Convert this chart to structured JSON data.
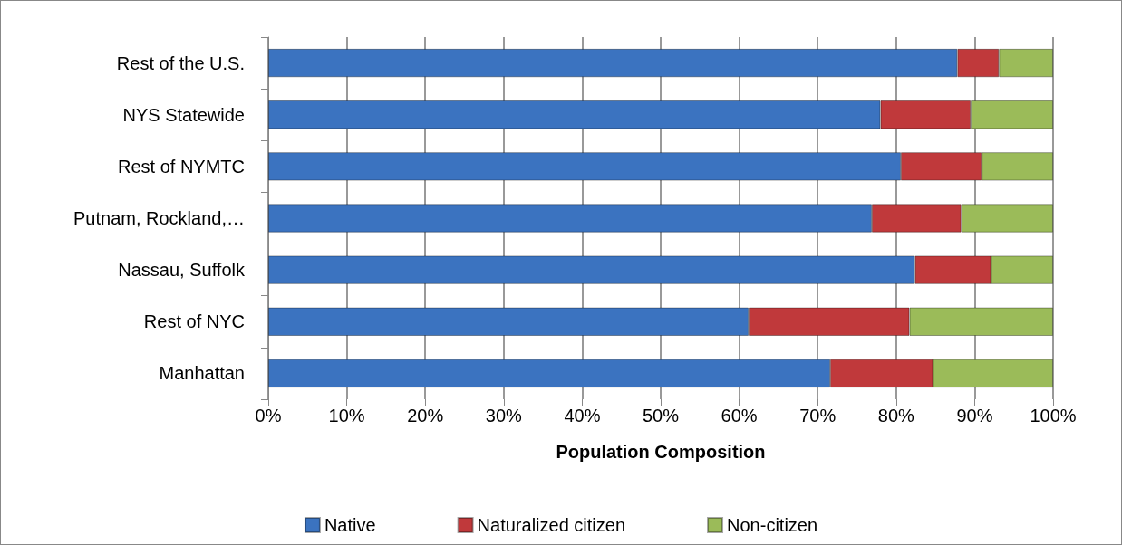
{
  "chart_data": {
    "type": "bar",
    "orientation": "horizontal",
    "stacked": true,
    "xlabel": "Population Composition",
    "categories": [
      "Rest of the U.S.",
      "NYS Statewide",
      "Rest of NYMTC",
      "Putnam, Rockland,…",
      "Nassau, Suffolk",
      "Rest of NYC",
      "Manhattan"
    ],
    "series": [
      {
        "name": "Native",
        "color": "#3b73c0",
        "values": [
          87.8,
          78.0,
          80.6,
          76.9,
          82.4,
          61.2,
          71.6
        ]
      },
      {
        "name": "Naturalized citizen",
        "color": "#c0393b",
        "values": [
          5.3,
          11.5,
          10.3,
          11.4,
          9.7,
          20.5,
          13.1
        ]
      },
      {
        "name": "Non-citizen",
        "color": "#9bbb59",
        "values": [
          6.9,
          10.5,
          9.1,
          11.7,
          7.9,
          18.3,
          15.3
        ]
      }
    ],
    "xlim": [
      0,
      100
    ],
    "xticks": [
      {
        "value": 0,
        "label": "0%"
      },
      {
        "value": 10,
        "label": "10%"
      },
      {
        "value": 20,
        "label": "20%"
      },
      {
        "value": 30,
        "label": "30%"
      },
      {
        "value": 40,
        "label": "40%"
      },
      {
        "value": 50,
        "label": "50%"
      },
      {
        "value": 60,
        "label": "60%"
      },
      {
        "value": 70,
        "label": "70%"
      },
      {
        "value": 80,
        "label": "80%"
      },
      {
        "value": 90,
        "label": "90%"
      },
      {
        "value": 100,
        "label": "100%"
      }
    ],
    "grid": "x",
    "legend": "bottom"
  }
}
